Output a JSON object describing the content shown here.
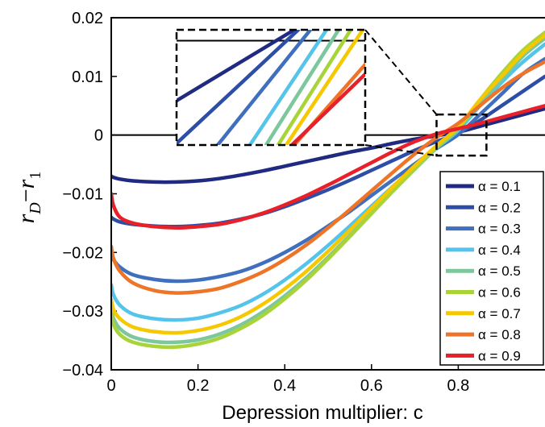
{
  "chart_data": {
    "type": "line",
    "xlabel": "Depression multiplier: c",
    "ylabel": {
      "main": "r",
      "sub1": "D",
      "minus": "−",
      "main2": "r",
      "sub2": "1"
    },
    "xlim": [
      0,
      1
    ],
    "ylim": [
      -0.04,
      0.02
    ],
    "x_ticks": [
      0,
      0.2,
      0.4,
      0.6,
      0.8
    ],
    "x_tick_labels": [
      "0",
      "0.2",
      "0.4",
      "0.6",
      "0.8"
    ],
    "y_ticks": [
      -0.04,
      -0.03,
      -0.02,
      -0.01,
      0,
      0.01,
      0.02
    ],
    "y_tick_labels": [
      "−0.04",
      "−0.03",
      "−0.02",
      "−0.01",
      "0",
      "0.01",
      "0.02"
    ],
    "grid": false,
    "legend_position": "bottom-right",
    "has_inset": true,
    "inset_xlim": [
      0.75,
      0.865
    ],
    "inset_ylim": [
      -0.0035,
      0.0035
    ],
    "zero_line": 0,
    "series": [
      {
        "name": "α = 0.1",
        "color": "#1f2a80",
        "values": [
          [
            0.0,
            -0.007
          ],
          [
            0.005,
            -0.0072
          ],
          [
            0.02,
            -0.0075
          ],
          [
            0.05,
            -0.0078
          ],
          [
            0.1,
            -0.008
          ],
          [
            0.15,
            -0.008
          ],
          [
            0.2,
            -0.0078
          ],
          [
            0.25,
            -0.0074
          ],
          [
            0.3,
            -0.0068
          ],
          [
            0.35,
            -0.0061
          ],
          [
            0.4,
            -0.0053
          ],
          [
            0.45,
            -0.0045
          ],
          [
            0.5,
            -0.0037
          ],
          [
            0.55,
            -0.0029
          ],
          [
            0.6,
            -0.0022
          ],
          [
            0.65,
            -0.0014
          ],
          [
            0.7,
            -0.0007
          ],
          [
            0.75,
            -0.0001
          ],
          [
            0.8,
            0.0005
          ],
          [
            0.85,
            0.0015
          ],
          [
            0.9,
            0.0025
          ],
          [
            0.95,
            0.0035
          ],
          [
            1.0,
            0.0045
          ]
        ]
      },
      {
        "name": "α = 0.2",
        "color": "#2d4ea6",
        "values": [
          [
            0.0,
            -0.014
          ],
          [
            0.005,
            -0.0143
          ],
          [
            0.02,
            -0.0148
          ],
          [
            0.05,
            -0.0152
          ],
          [
            0.1,
            -0.0155
          ],
          [
            0.15,
            -0.0156
          ],
          [
            0.2,
            -0.0154
          ],
          [
            0.25,
            -0.015
          ],
          [
            0.3,
            -0.0143
          ],
          [
            0.35,
            -0.0134
          ],
          [
            0.4,
            -0.0122
          ],
          [
            0.45,
            -0.0108
          ],
          [
            0.5,
            -0.0093
          ],
          [
            0.55,
            -0.0077
          ],
          [
            0.6,
            -0.006
          ],
          [
            0.65,
            -0.0043
          ],
          [
            0.7,
            -0.0026
          ],
          [
            0.75,
            -0.0011
          ],
          [
            0.8,
            0.0003
          ],
          [
            0.85,
            0.0025
          ],
          [
            0.9,
            0.005
          ],
          [
            0.95,
            0.0075
          ],
          [
            1.0,
            0.01
          ]
        ]
      },
      {
        "name": "α = 0.3",
        "color": "#3f6fbd",
        "values": [
          [
            0.0,
            -0.02
          ],
          [
            0.005,
            -0.0212
          ],
          [
            0.02,
            -0.0225
          ],
          [
            0.05,
            -0.0238
          ],
          [
            0.1,
            -0.0246
          ],
          [
            0.15,
            -0.0249
          ],
          [
            0.2,
            -0.0247
          ],
          [
            0.25,
            -0.0241
          ],
          [
            0.3,
            -0.0232
          ],
          [
            0.35,
            -0.0218
          ],
          [
            0.4,
            -0.02
          ],
          [
            0.45,
            -0.0179
          ],
          [
            0.5,
            -0.0155
          ],
          [
            0.55,
            -0.013
          ],
          [
            0.6,
            -0.0103
          ],
          [
            0.65,
            -0.0076
          ],
          [
            0.7,
            -0.0049
          ],
          [
            0.75,
            -0.0023
          ],
          [
            0.8,
            0.0001
          ],
          [
            0.85,
            0.0035
          ],
          [
            0.9,
            0.007
          ],
          [
            0.95,
            0.0105
          ],
          [
            1.0,
            0.013
          ]
        ]
      },
      {
        "name": "α = 0.4",
        "color": "#55c4ea",
        "values": [
          [
            0.0,
            -0.0255
          ],
          [
            0.005,
            -0.0272
          ],
          [
            0.02,
            -0.029
          ],
          [
            0.05,
            -0.0305
          ],
          [
            0.1,
            -0.0313
          ],
          [
            0.15,
            -0.0315
          ],
          [
            0.2,
            -0.0312
          ],
          [
            0.25,
            -0.0303
          ],
          [
            0.3,
            -0.029
          ],
          [
            0.35,
            -0.0271
          ],
          [
            0.4,
            -0.0247
          ],
          [
            0.45,
            -0.0219
          ],
          [
            0.5,
            -0.0188
          ],
          [
            0.55,
            -0.0155
          ],
          [
            0.6,
            -0.0121
          ],
          [
            0.65,
            -0.0087
          ],
          [
            0.7,
            -0.0054
          ],
          [
            0.75,
            -0.0022
          ],
          [
            0.8,
            0.0008
          ],
          [
            0.85,
            0.005
          ],
          [
            0.9,
            0.009
          ],
          [
            0.95,
            0.0125
          ],
          [
            1.0,
            0.0155
          ]
        ]
      },
      {
        "name": "α = 0.5",
        "color": "#7cc79b",
        "values": [
          [
            0.0,
            -0.0295
          ],
          [
            0.005,
            -0.0312
          ],
          [
            0.02,
            -0.033
          ],
          [
            0.05,
            -0.0344
          ],
          [
            0.1,
            -0.0352
          ],
          [
            0.15,
            -0.0353
          ],
          [
            0.2,
            -0.0349
          ],
          [
            0.25,
            -0.0339
          ],
          [
            0.3,
            -0.0323
          ],
          [
            0.35,
            -0.0301
          ],
          [
            0.4,
            -0.0274
          ],
          [
            0.45,
            -0.0243
          ],
          [
            0.5,
            -0.0208
          ],
          [
            0.55,
            -0.0171
          ],
          [
            0.6,
            -0.0133
          ],
          [
            0.65,
            -0.0095
          ],
          [
            0.7,
            -0.0058
          ],
          [
            0.75,
            -0.0022
          ],
          [
            0.8,
            0.001
          ],
          [
            0.85,
            0.0055
          ],
          [
            0.9,
            0.0095
          ],
          [
            0.95,
            0.0135
          ],
          [
            1.0,
            0.0165
          ]
        ]
      },
      {
        "name": "α = 0.6",
        "color": "#a8d43a",
        "values": [
          [
            0.0,
            -0.03
          ],
          [
            0.005,
            -0.0322
          ],
          [
            0.02,
            -0.034
          ],
          [
            0.05,
            -0.0353
          ],
          [
            0.1,
            -0.036
          ],
          [
            0.15,
            -0.0361
          ],
          [
            0.2,
            -0.0356
          ],
          [
            0.25,
            -0.0346
          ],
          [
            0.3,
            -0.0329
          ],
          [
            0.35,
            -0.0307
          ],
          [
            0.4,
            -0.0279
          ],
          [
            0.45,
            -0.0247
          ],
          [
            0.5,
            -0.0211
          ],
          [
            0.55,
            -0.0173
          ],
          [
            0.6,
            -0.0134
          ],
          [
            0.65,
            -0.0095
          ],
          [
            0.7,
            -0.0057
          ],
          [
            0.75,
            -0.002
          ],
          [
            0.8,
            0.0012
          ],
          [
            0.85,
            0.006
          ],
          [
            0.9,
            0.0105
          ],
          [
            0.95,
            0.0145
          ],
          [
            1.0,
            0.0175
          ]
        ]
      },
      {
        "name": "α = 0.7",
        "color": "#f5c800",
        "values": [
          [
            0.0,
            -0.028
          ],
          [
            0.005,
            -0.0297
          ],
          [
            0.02,
            -0.0313
          ],
          [
            0.05,
            -0.0327
          ],
          [
            0.1,
            -0.0335
          ],
          [
            0.15,
            -0.0337
          ],
          [
            0.2,
            -0.0333
          ],
          [
            0.25,
            -0.0324
          ],
          [
            0.3,
            -0.0309
          ],
          [
            0.35,
            -0.0288
          ],
          [
            0.4,
            -0.0262
          ],
          [
            0.45,
            -0.0232
          ],
          [
            0.5,
            -0.0198
          ],
          [
            0.55,
            -0.0162
          ],
          [
            0.6,
            -0.0125
          ],
          [
            0.65,
            -0.0088
          ],
          [
            0.7,
            -0.0052
          ],
          [
            0.75,
            -0.0018
          ],
          [
            0.8,
            0.0014
          ],
          [
            0.85,
            0.006
          ],
          [
            0.9,
            0.01
          ],
          [
            0.95,
            0.014
          ],
          [
            1.0,
            0.017
          ]
        ]
      },
      {
        "name": "α = 0.8",
        "color": "#ee7428",
        "values": [
          [
            0.0,
            -0.019
          ],
          [
            0.005,
            -0.021
          ],
          [
            0.02,
            -0.0232
          ],
          [
            0.05,
            -0.0252
          ],
          [
            0.1,
            -0.0265
          ],
          [
            0.15,
            -0.0269
          ],
          [
            0.2,
            -0.0267
          ],
          [
            0.25,
            -0.0261
          ],
          [
            0.3,
            -0.0249
          ],
          [
            0.35,
            -0.0233
          ],
          [
            0.4,
            -0.0212
          ],
          [
            0.45,
            -0.0187
          ],
          [
            0.5,
            -0.0158
          ],
          [
            0.55,
            -0.0127
          ],
          [
            0.6,
            -0.0095
          ],
          [
            0.65,
            -0.0063
          ],
          [
            0.7,
            -0.0032
          ],
          [
            0.75,
            -0.0004
          ],
          [
            0.8,
            0.002
          ],
          [
            0.85,
            0.005
          ],
          [
            0.9,
            0.008
          ],
          [
            0.95,
            0.0105
          ],
          [
            1.0,
            0.0125
          ]
        ]
      },
      {
        "name": "α = 0.9",
        "color": "#e8202a",
        "values": [
          [
            0.0,
            -0.01
          ],
          [
            0.005,
            -0.012
          ],
          [
            0.02,
            -0.014
          ],
          [
            0.05,
            -0.015
          ],
          [
            0.1,
            -0.0156
          ],
          [
            0.15,
            -0.0158
          ],
          [
            0.2,
            -0.0156
          ],
          [
            0.25,
            -0.0152
          ],
          [
            0.3,
            -0.0144
          ],
          [
            0.35,
            -0.0133
          ],
          [
            0.4,
            -0.0119
          ],
          [
            0.45,
            -0.0103
          ],
          [
            0.5,
            -0.0085
          ],
          [
            0.55,
            -0.0066
          ],
          [
            0.6,
            -0.0047
          ],
          [
            0.65,
            -0.0028
          ],
          [
            0.7,
            -0.0011
          ],
          [
            0.75,
            0.0002
          ],
          [
            0.8,
            0.0011
          ],
          [
            0.85,
            0.002
          ],
          [
            0.9,
            0.003
          ],
          [
            0.95,
            0.004
          ],
          [
            1.0,
            0.005
          ]
        ]
      }
    ]
  }
}
